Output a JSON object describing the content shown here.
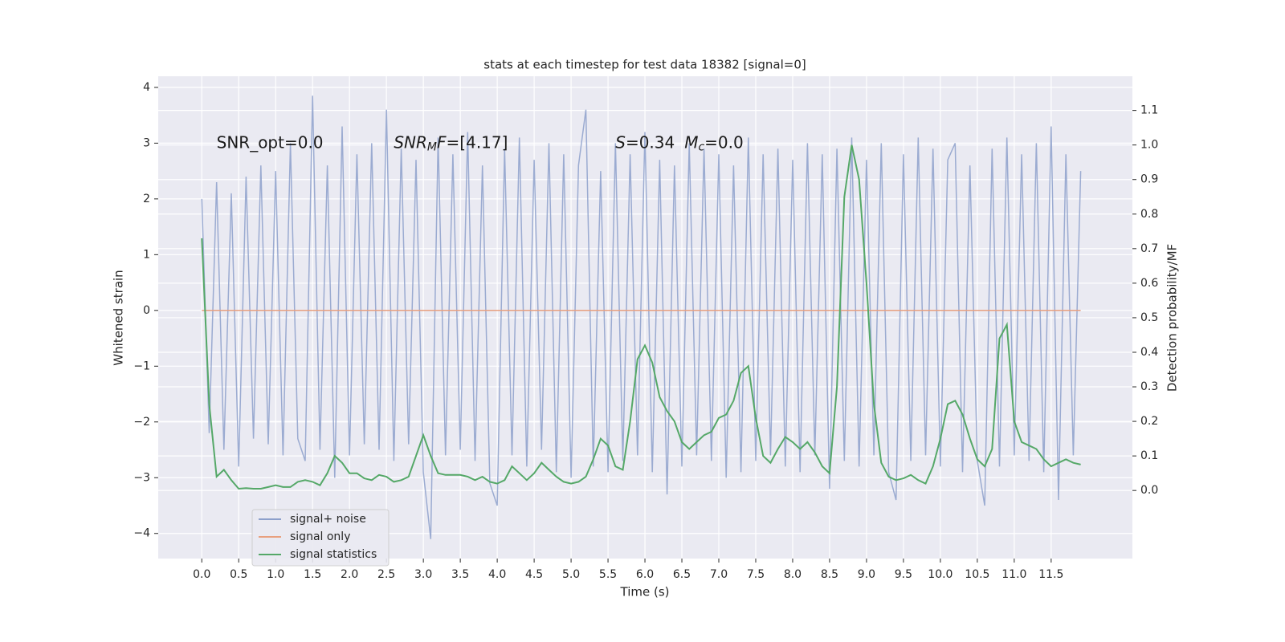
{
  "chart_data": {
    "type": "line",
    "title": "stats at each timestep for test data 18382 [signal=0]",
    "xlabel": "Time (s)",
    "ylabel": "Whitened strain",
    "y2label": "Detection probability/MF",
    "annotations": [
      {
        "x": 0.2,
        "y": 3.0,
        "parts": [
          {
            "text": "SNR_opt=0.0",
            "style": "normal"
          }
        ]
      },
      {
        "x": 2.6,
        "y": 3.0,
        "parts": [
          {
            "text": "SNR",
            "style": "italic"
          },
          {
            "text": "M",
            "style": "sub"
          },
          {
            "text": "F",
            "style": "italic"
          },
          {
            "text": "=[4.17]",
            "style": "normal"
          }
        ]
      },
      {
        "x": 5.6,
        "y": 3.0,
        "parts": [
          {
            "text": "S",
            "style": "italic"
          },
          {
            "text": "=0.34",
            "style": "normal"
          }
        ]
      },
      {
        "x": 6.6,
        "y": 3.0,
        "parts": [
          {
            "text": "M",
            "style": "italic"
          },
          {
            "text": "c",
            "style": "sub"
          },
          {
            "text": "=0.0",
            "style": "normal"
          }
        ]
      }
    ],
    "x": [
      0.0,
      0.1,
      0.2,
      0.3,
      0.4,
      0.5,
      0.6,
      0.7,
      0.8,
      0.9,
      1.0,
      1.1,
      1.2,
      1.3,
      1.4,
      1.5,
      1.6,
      1.7,
      1.8,
      1.9,
      2.0,
      2.1,
      2.2,
      2.3,
      2.4,
      2.5,
      2.6,
      2.7,
      2.8,
      2.9,
      3.0,
      3.1,
      3.2,
      3.3,
      3.4,
      3.5,
      3.6,
      3.7,
      3.8,
      3.9,
      4.0,
      4.1,
      4.2,
      4.3,
      4.4,
      4.5,
      4.6,
      4.7,
      4.8,
      4.9,
      5.0,
      5.1,
      5.2,
      5.3,
      5.4,
      5.5,
      5.6,
      5.7,
      5.8,
      5.9,
      6.0,
      6.1,
      6.2,
      6.3,
      6.4,
      6.5,
      6.6,
      6.7,
      6.8,
      6.9,
      7.0,
      7.1,
      7.2,
      7.3,
      7.4,
      7.5,
      7.6,
      7.7,
      7.8,
      7.9,
      8.0,
      8.1,
      8.2,
      8.3,
      8.4,
      8.5,
      8.6,
      8.7,
      8.8,
      8.9,
      9.0,
      9.1,
      9.2,
      9.3,
      9.4,
      9.5,
      9.6,
      9.7,
      9.8,
      9.9,
      10.0,
      10.1,
      10.2,
      10.3,
      10.4,
      10.5,
      10.6,
      10.7,
      10.8,
      10.9,
      11.0,
      11.1,
      11.2,
      11.3,
      11.4,
      11.5,
      11.6,
      11.7,
      11.8,
      11.9
    ],
    "series": [
      {
        "name": "signal+ noise",
        "color": "#8da0cb",
        "axis": "y",
        "values": [
          2.0,
          -2.2,
          2.3,
          -2.5,
          2.1,
          -2.8,
          2.4,
          -2.3,
          2.6,
          -2.4,
          2.5,
          -2.6,
          3.0,
          -2.3,
          -2.7,
          3.85,
          -2.5,
          2.6,
          -3.0,
          3.3,
          -2.6,
          2.8,
          -2.4,
          3.0,
          -2.5,
          3.6,
          -2.7,
          2.9,
          -2.4,
          2.7,
          -2.9,
          -4.1,
          3.1,
          -2.6,
          2.8,
          -2.5,
          3.2,
          -2.7,
          2.6,
          -3.1,
          -3.5,
          2.9,
          -2.6,
          3.1,
          -2.8,
          2.7,
          -2.5,
          3.0,
          -2.9,
          2.8,
          -3.0,
          2.6,
          3.6,
          -2.8,
          2.5,
          -2.9,
          3.0,
          -2.7,
          2.8,
          -2.6,
          3.2,
          -2.9,
          2.7,
          -3.3,
          2.6,
          -2.8,
          3.0,
          -2.6,
          2.9,
          -2.7,
          2.8,
          -3.0,
          2.6,
          -2.9,
          3.1,
          -2.7,
          2.8,
          -2.6,
          2.9,
          -2.8,
          2.7,
          -2.9,
          3.0,
          -2.6,
          2.8,
          -3.2,
          2.9,
          -2.7,
          3.1,
          -2.8,
          2.7,
          -2.6,
          3.0,
          -2.9,
          -3.4,
          2.8,
          -2.7,
          3.1,
          -2.6,
          2.9,
          -2.8,
          2.7,
          3.0,
          -2.9,
          2.6,
          -2.7,
          -3.5,
          2.9,
          -2.8,
          3.1,
          -2.6,
          2.8,
          -2.7,
          3.0,
          -2.9,
          3.3,
          -3.4,
          2.8,
          -2.6,
          2.5
        ]
      },
      {
        "name": "signal only",
        "color": "#e8a07f",
        "axis": "y",
        "values": [
          0,
          0,
          0,
          0,
          0,
          0,
          0,
          0,
          0,
          0,
          0,
          0,
          0,
          0,
          0,
          0,
          0,
          0,
          0,
          0,
          0,
          0,
          0,
          0,
          0,
          0,
          0,
          0,
          0,
          0,
          0,
          0,
          0,
          0,
          0,
          0,
          0,
          0,
          0,
          0,
          0,
          0,
          0,
          0,
          0,
          0,
          0,
          0,
          0,
          0,
          0,
          0,
          0,
          0,
          0,
          0,
          0,
          0,
          0,
          0,
          0,
          0,
          0,
          0,
          0,
          0,
          0,
          0,
          0,
          0,
          0,
          0,
          0,
          0,
          0,
          0,
          0,
          0,
          0,
          0,
          0,
          0,
          0,
          0,
          0,
          0,
          0,
          0,
          0,
          0,
          0,
          0,
          0,
          0,
          0,
          0,
          0,
          0,
          0,
          0,
          0,
          0,
          0,
          0,
          0,
          0,
          0,
          0,
          0,
          0,
          0,
          0,
          0,
          0,
          0,
          0,
          0,
          0,
          0,
          0
        ]
      },
      {
        "name": "signal statistics",
        "color": "#55a868",
        "axis": "y2",
        "values": [
          0.73,
          0.25,
          0.04,
          0.06,
          0.03,
          0.005,
          0.007,
          0.005,
          0.005,
          0.01,
          0.015,
          0.01,
          0.01,
          0.025,
          0.03,
          0.025,
          0.015,
          0.05,
          0.1,
          0.08,
          0.05,
          0.05,
          0.035,
          0.03,
          0.045,
          0.04,
          0.025,
          0.03,
          0.04,
          0.1,
          0.16,
          0.1,
          0.05,
          0.045,
          0.045,
          0.045,
          0.04,
          0.03,
          0.04,
          0.025,
          0.02,
          0.03,
          0.07,
          0.05,
          0.03,
          0.05,
          0.08,
          0.06,
          0.04,
          0.025,
          0.02,
          0.025,
          0.04,
          0.09,
          0.15,
          0.13,
          0.07,
          0.06,
          0.2,
          0.38,
          0.42,
          0.37,
          0.27,
          0.23,
          0.2,
          0.14,
          0.12,
          0.14,
          0.16,
          0.17,
          0.21,
          0.22,
          0.26,
          0.34,
          0.36,
          0.21,
          0.1,
          0.08,
          0.12,
          0.155,
          0.14,
          0.12,
          0.14,
          0.11,
          0.07,
          0.05,
          0.3,
          0.85,
          1.0,
          0.9,
          0.6,
          0.25,
          0.08,
          0.04,
          0.03,
          0.035,
          0.045,
          0.03,
          0.02,
          0.07,
          0.15,
          0.25,
          0.26,
          0.22,
          0.15,
          0.09,
          0.07,
          0.12,
          0.44,
          0.48,
          0.2,
          0.14,
          0.13,
          0.12,
          0.09,
          0.07,
          0.08,
          0.09,
          0.08,
          0.075
        ]
      }
    ],
    "xlim": [
      -0.59,
      12.6
    ],
    "xticks": [
      {
        "value": 0,
        "label": "0.0"
      },
      {
        "value": 0.5,
        "label": "0.5"
      },
      {
        "value": 1,
        "label": "1.0"
      },
      {
        "value": 1.5,
        "label": "1.5"
      },
      {
        "value": 2,
        "label": "2.0"
      },
      {
        "value": 2.5,
        "label": "2.5"
      },
      {
        "value": 3,
        "label": "3.0"
      },
      {
        "value": 3.5,
        "label": "3.5"
      },
      {
        "value": 4,
        "label": "4.0"
      },
      {
        "value": 4.5,
        "label": "4.5"
      },
      {
        "value": 5,
        "label": "5.0"
      },
      {
        "value": 5.5,
        "label": "5.5"
      },
      {
        "value": 6,
        "label": "6.0"
      },
      {
        "value": 6.5,
        "label": "6.5"
      },
      {
        "value": 7,
        "label": "7.0"
      },
      {
        "value": 7.5,
        "label": "7.5"
      },
      {
        "value": 8,
        "label": "8.0"
      },
      {
        "value": 8.5,
        "label": "8.5"
      },
      {
        "value": 9,
        "label": "9.0"
      },
      {
        "value": 9.5,
        "label": "9.5"
      },
      {
        "value": 10,
        "label": "10.0"
      },
      {
        "value": 10.5,
        "label": "10.5"
      },
      {
        "value": 11,
        "label": "11.0"
      },
      {
        "value": 11.5,
        "label": "11.5"
      }
    ],
    "ylim": [
      -4.45,
      4.2
    ],
    "yticks": [
      {
        "value": -4,
        "label": "−4"
      },
      {
        "value": -3,
        "label": "−3"
      },
      {
        "value": -2,
        "label": "−2"
      },
      {
        "value": -1,
        "label": "−1"
      },
      0,
      1,
      2,
      3,
      4
    ],
    "y2lim": [
      -0.197,
      1.199
    ],
    "y2ticks": [
      {
        "value": 0,
        "label": "0.0"
      },
      {
        "value": 0.1,
        "label": "0.1"
      },
      {
        "value": 0.2,
        "label": "0.2"
      },
      {
        "value": 0.3,
        "label": "0.3"
      },
      {
        "value": 0.4,
        "label": "0.4"
      },
      {
        "value": 0.5,
        "label": "0.5"
      },
      {
        "value": 0.6,
        "label": "0.6"
      },
      {
        "value": 0.7,
        "label": "0.7"
      },
      {
        "value": 0.8,
        "label": "0.8"
      },
      {
        "value": 0.9,
        "label": "0.9"
      },
      {
        "value": 1,
        "label": "1.0"
      },
      {
        "value": 1.1,
        "label": "1.1"
      }
    ],
    "grid": true,
    "legend": "lower left"
  }
}
